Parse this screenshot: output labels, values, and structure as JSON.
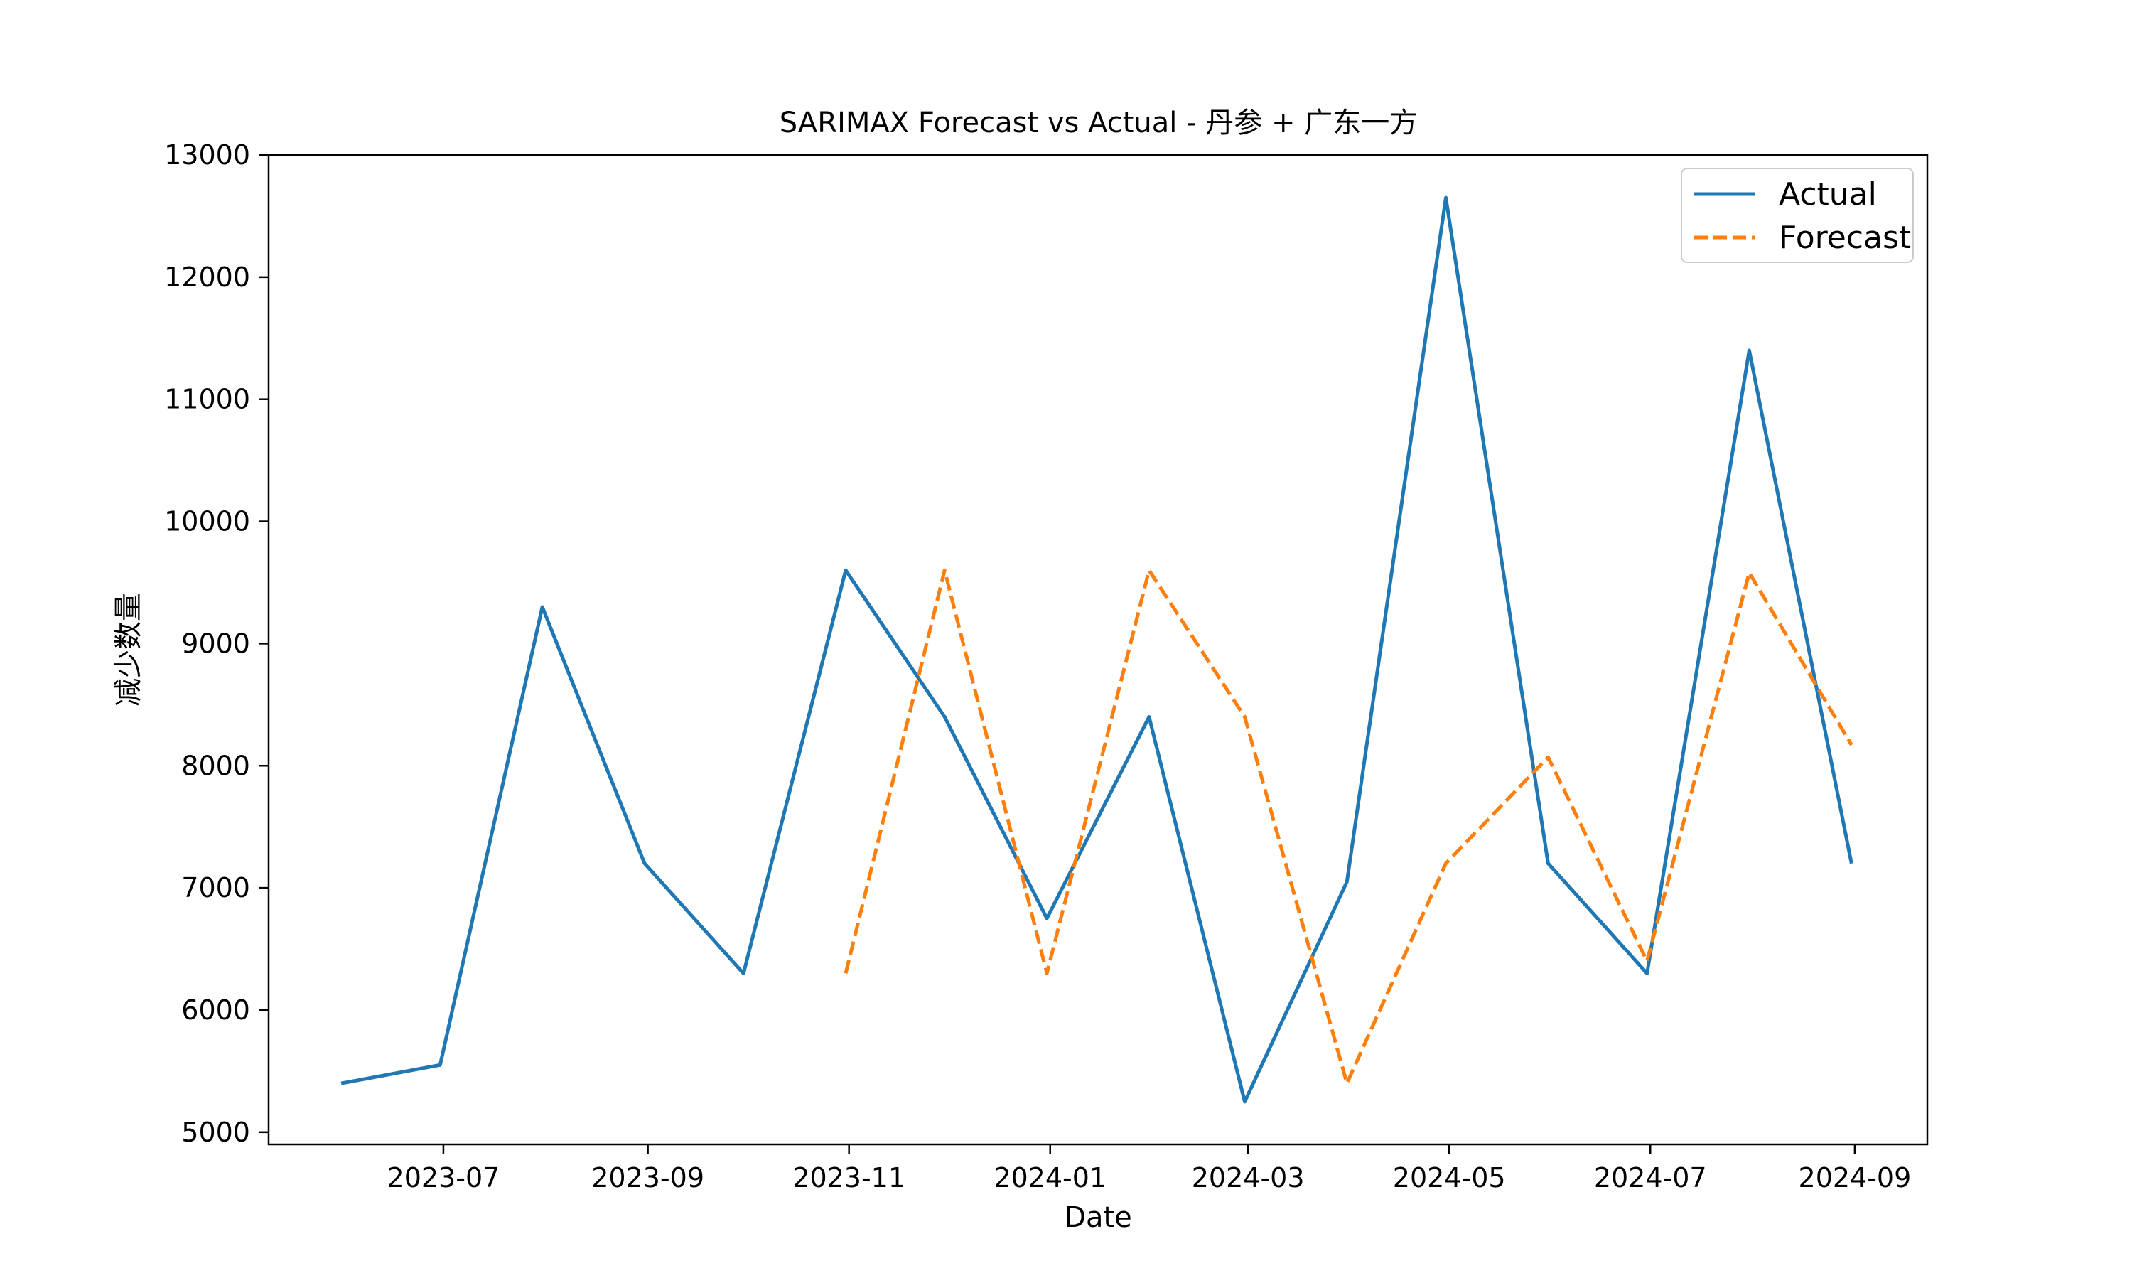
{
  "chart_data": {
    "type": "line",
    "title": "SARIMAX Forecast vs Actual - 丹参 + 广东一方",
    "xlabel": "Date",
    "ylabel": "减少数量",
    "xlim": [
      "2023-05-09",
      "2024-09-23"
    ],
    "ylim": [
      4900,
      13000
    ],
    "x_ticks": [
      "2023-07",
      "2023-09",
      "2023-11",
      "2024-01",
      "2024-03",
      "2024-05",
      "2024-07",
      "2024-09"
    ],
    "y_ticks": [
      5000,
      6000,
      7000,
      8000,
      9000,
      10000,
      11000,
      12000,
      13000
    ],
    "grid": false,
    "legend_position": "top-right",
    "series": [
      {
        "name": "Actual",
        "color": "#1f77b4",
        "style": "solid",
        "points": [
          {
            "x": "2023-05-31",
            "y": 5400
          },
          {
            "x": "2023-06-30",
            "y": 5550
          },
          {
            "x": "2023-07-31",
            "y": 9300
          },
          {
            "x": "2023-08-31",
            "y": 7200
          },
          {
            "x": "2023-09-30",
            "y": 6300
          },
          {
            "x": "2023-10-31",
            "y": 9600
          },
          {
            "x": "2023-11-30",
            "y": 8400
          },
          {
            "x": "2023-12-31",
            "y": 6750
          },
          {
            "x": "2024-01-31",
            "y": 8400
          },
          {
            "x": "2024-02-29",
            "y": 5250
          },
          {
            "x": "2024-03-31",
            "y": 7050
          },
          {
            "x": "2024-04-30",
            "y": 12650
          },
          {
            "x": "2024-05-31",
            "y": 7200
          },
          {
            "x": "2024-06-30",
            "y": 6300
          },
          {
            "x": "2024-07-31",
            "y": 11400
          },
          {
            "x": "2024-08-31",
            "y": 7200
          }
        ]
      },
      {
        "name": "Forecast",
        "color": "#ff7f0e",
        "style": "dashed",
        "points": [
          {
            "x": "2023-10-31",
            "y": 6300
          },
          {
            "x": "2023-11-30",
            "y": 9600
          },
          {
            "x": "2023-12-31",
            "y": 6300
          },
          {
            "x": "2024-01-31",
            "y": 9600
          },
          {
            "x": "2024-02-29",
            "y": 8400
          },
          {
            "x": "2024-03-31",
            "y": 5400
          },
          {
            "x": "2024-04-30",
            "y": 7200
          },
          {
            "x": "2024-05-31",
            "y": 8070
          },
          {
            "x": "2024-06-30",
            "y": 6400
          },
          {
            "x": "2024-07-31",
            "y": 9580
          },
          {
            "x": "2024-08-31",
            "y": 8170
          }
        ]
      }
    ]
  }
}
